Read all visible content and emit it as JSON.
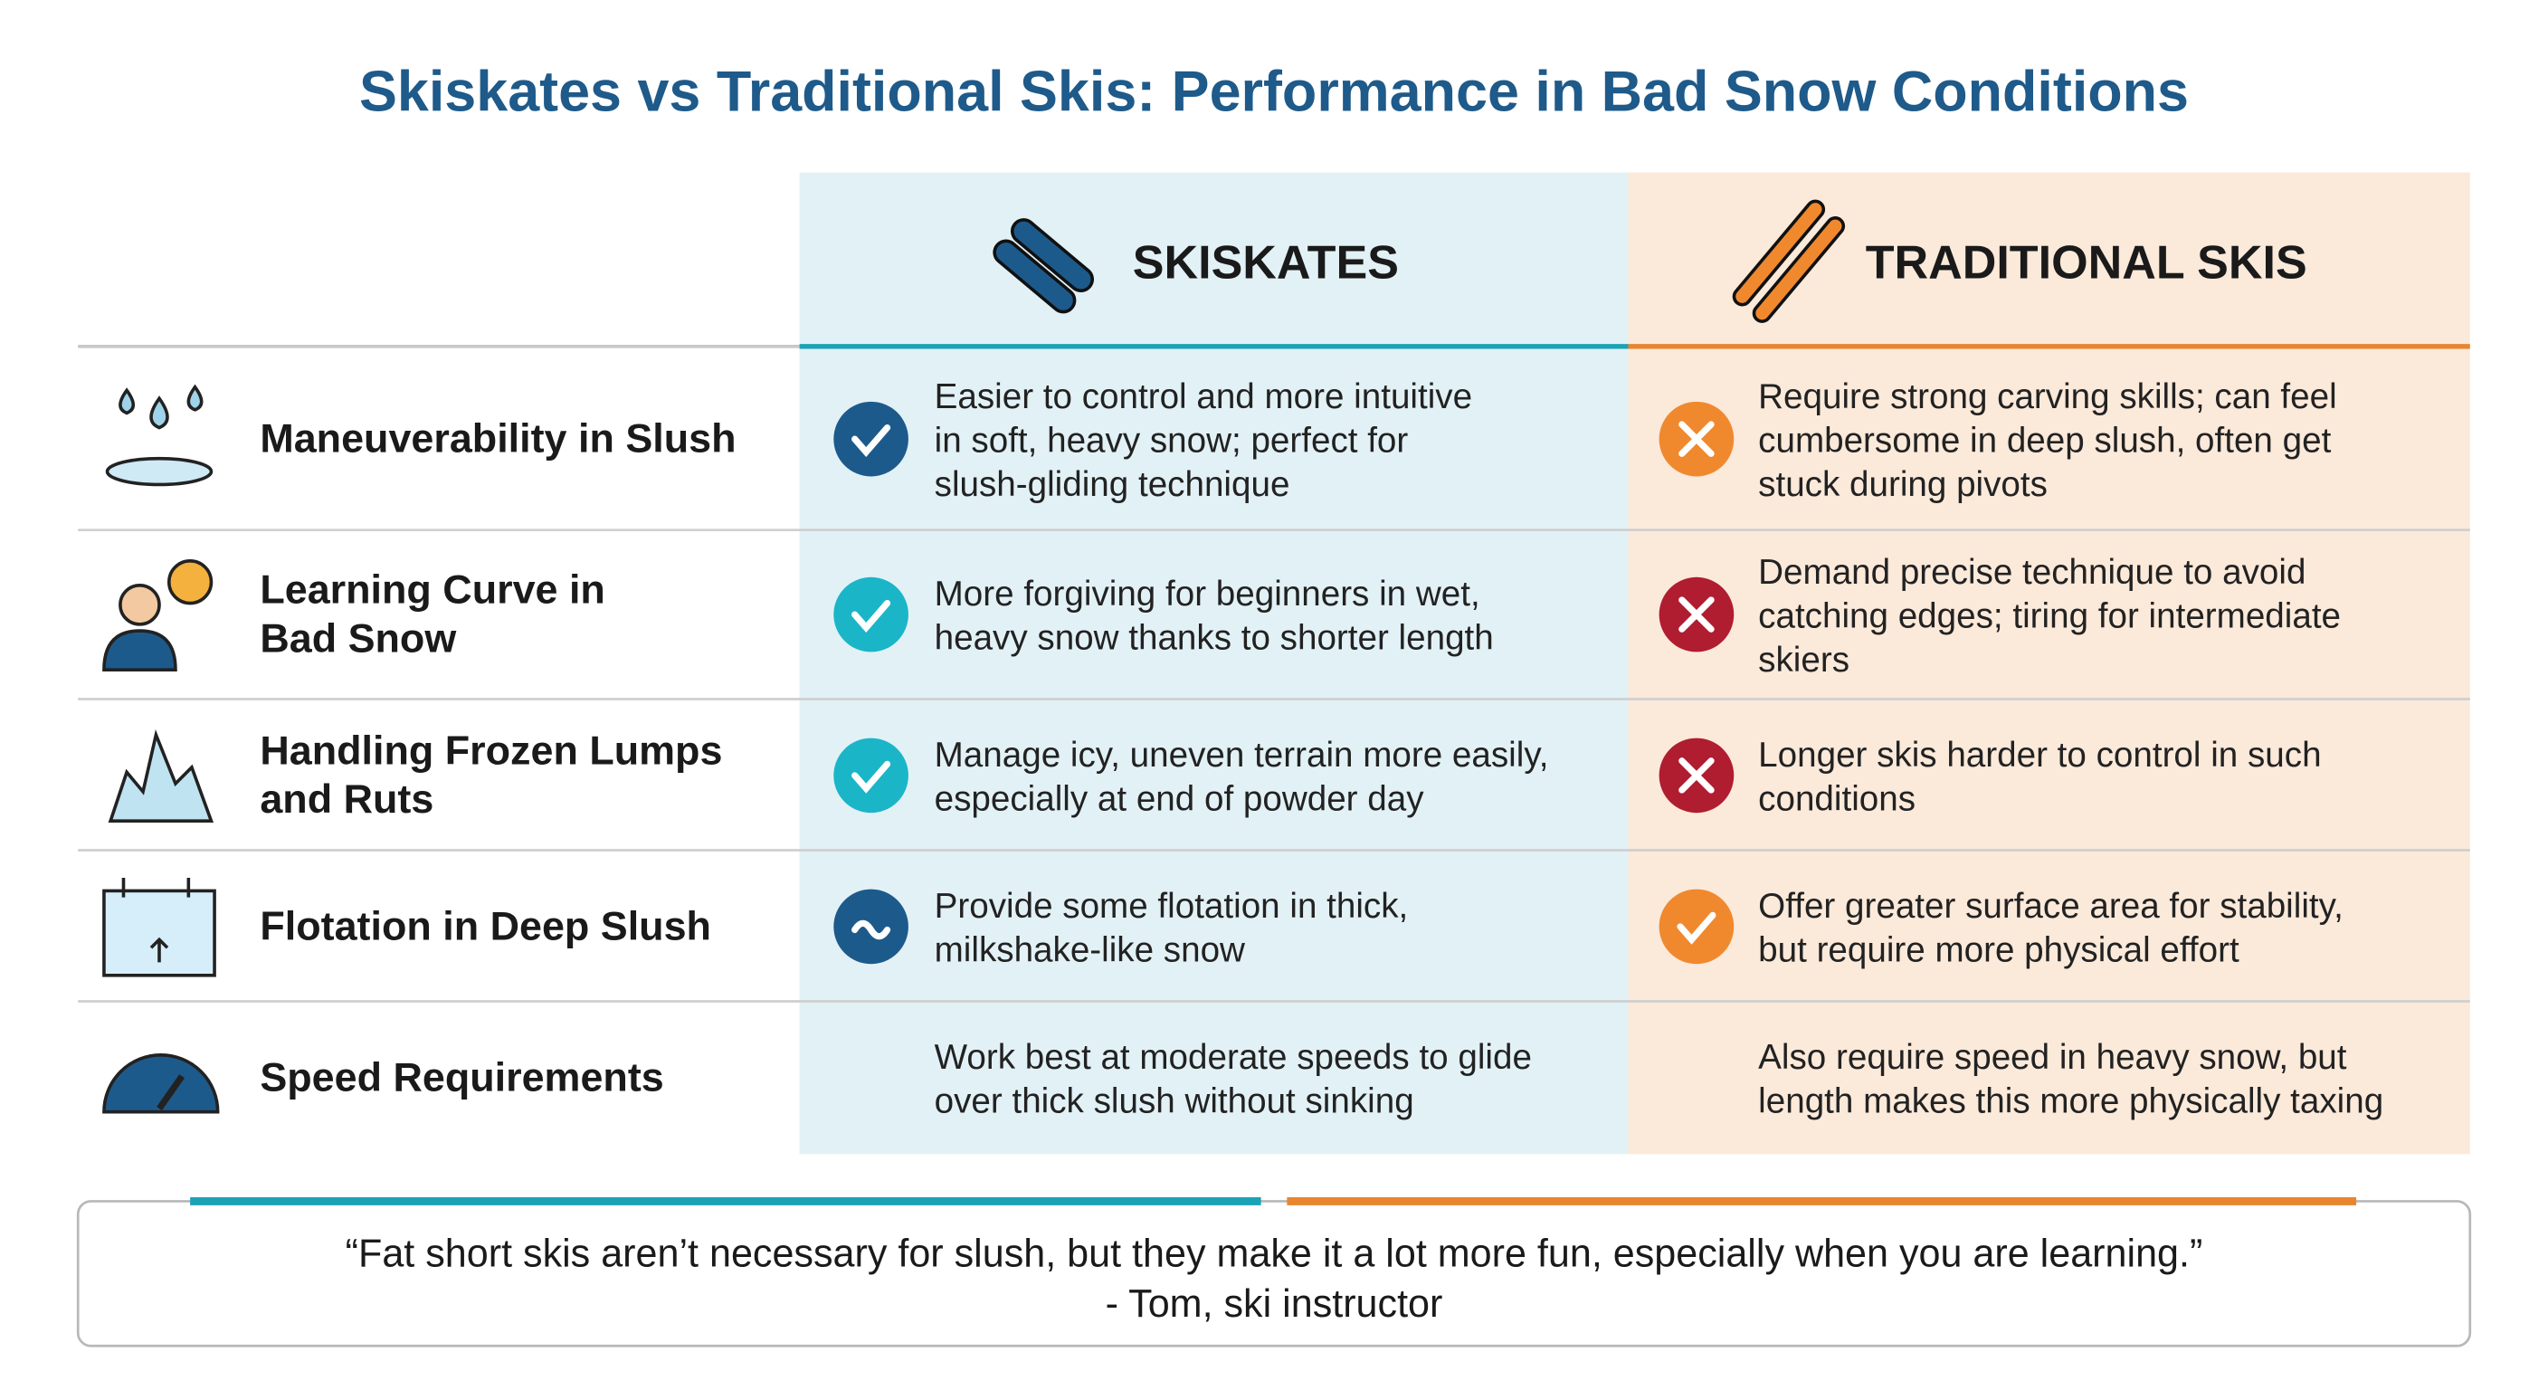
{
  "title": "Skiskates vs Traditional Skis: Performance in Bad Snow Conditions",
  "columns": {
    "skiskates": "SKISKATES",
    "traditional": "TRADITIONAL SKIS"
  },
  "table": {
    "rows": [
      {
        "label": [
          "Maneuverability in Slush"
        ],
        "skiskates": [
          "Easier to control and more intuitive",
          "in soft, heavy snow; perfect for",
          "slush-gliding technique"
        ],
        "traditional": [
          "Require strong carving skills; can feel",
          "cumbersome in deep slush, often get",
          "stuck during pivots"
        ]
      },
      {
        "label": [
          "Learning Curve in",
          "Bad Snow"
        ],
        "skiskates": [
          "More forgiving for beginners in wet,",
          "heavy snow thanks to shorter length"
        ],
        "traditional": [
          "Demand precise technique to avoid",
          "catching edges; tiring for intermediate",
          "skiers"
        ]
      },
      {
        "label": [
          "Handling Frozen Lumps",
          "and Ruts"
        ],
        "skiskates": [
          "Manage icy, uneven terrain more easily,",
          "especially at end of powder day"
        ],
        "traditional": [
          "Longer skis harder to control in such",
          "conditions"
        ]
      },
      {
        "label": [
          "Flotation in Deep Slush"
        ],
        "skiskates": [
          "Provide some flotation in thick,",
          "milkshake-like snow"
        ],
        "traditional": [
          "Offer greater surface area for stability,",
          "but require more physical effort"
        ]
      },
      {
        "label": [
          "Speed Requirements"
        ],
        "skiskates": [
          "Work best at moderate speeds to glide",
          "over thick slush without sinking"
        ],
        "traditional": [
          "Also require speed in heavy snow, but",
          "length makes this more physically taxing"
        ]
      }
    ]
  },
  "quote": {
    "text": "“Fat short skis aren’t necessary for slush, but they make it a lot more fun, especially when you are learning.”",
    "attribution": "- Tom, ski instructor"
  }
}
